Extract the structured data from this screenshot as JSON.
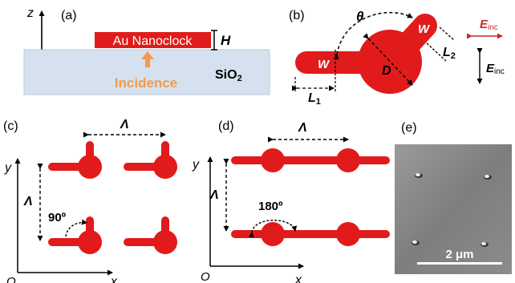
{
  "panels": {
    "a": {
      "label": "(a)",
      "nanoclock_label": "Au Nanoclock",
      "height_symbol": "H",
      "substrate": "SiO",
      "substrate_sub": "2",
      "incidence": "Incidence",
      "axis_z": "z",
      "axis_x": "x",
      "origin": "O"
    },
    "b": {
      "label": "(b)",
      "theta": "θ",
      "W_top": "W",
      "W_left": "W",
      "D": "D",
      "L1": "L",
      "L1_sub": "1",
      "L2": "L",
      "L2_sub": "2",
      "E_top": "E",
      "E_top_sub": "inc",
      "E_bottom": "E",
      "E_bottom_sub": "inc"
    },
    "c": {
      "label": "(c)",
      "lambda_top": "Λ",
      "lambda_left": "Λ",
      "angle": "90º",
      "axis_y": "y",
      "axis_x": "x",
      "origin": "O"
    },
    "d": {
      "label": "(d)",
      "lambda_top": "Λ",
      "lambda_left": "Λ",
      "angle": "180º",
      "axis_y": "y",
      "axis_x": "x",
      "origin": "O"
    },
    "e": {
      "label": "(e)",
      "scale_bar": "2 μm"
    }
  },
  "colors": {
    "gold": "#e11b1b",
    "incidence": "#f39b4a",
    "substrate": "#d5e1ee",
    "sem_bg": "#8a8a8a"
  }
}
